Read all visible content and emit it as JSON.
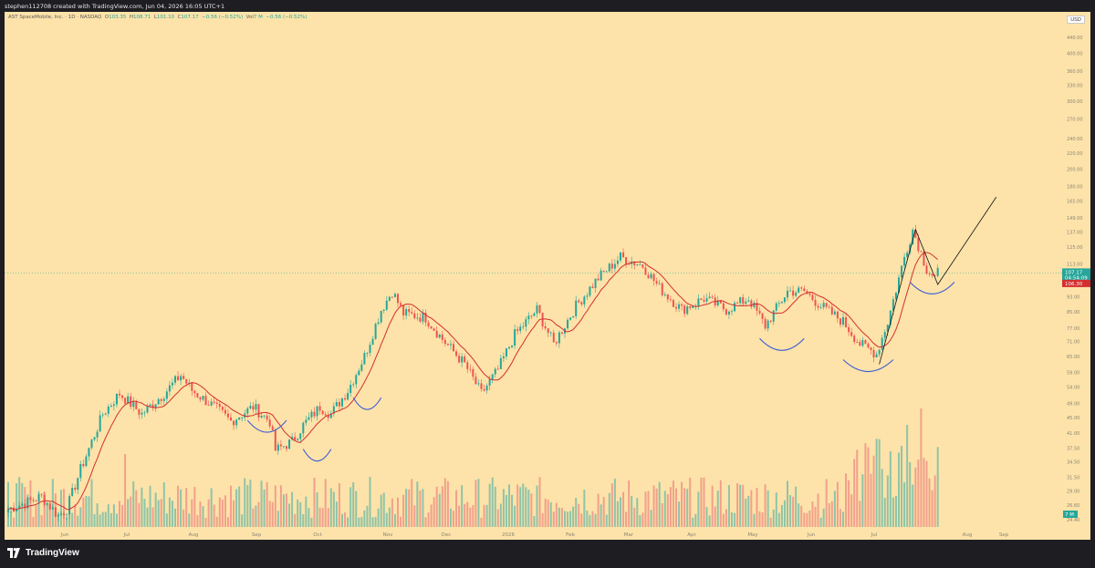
{
  "header": {
    "credit": "stephen112708 created with TradingView.com, Jun 04, 2026 16:05 UTC+1"
  },
  "legend": {
    "symbol": "AST SpaceMobile, Inc. · 1D · NASDAQ",
    "open_label": "O",
    "open": "103.35",
    "high_label": "H",
    "high": "108.71",
    "low_label": "L",
    "low": "101.10",
    "close_label": "C",
    "close": "107.17",
    "change": "−0.56 (−0.52%)",
    "vol_label": "Vol",
    "vol": "7 M",
    "vol_change": "−0.56 (−0.52%)"
  },
  "price_scale": {
    "currency": "USD",
    "labels": [
      "440.00",
      "400.00",
      "360.00",
      "330.00",
      "300.00",
      "270.00",
      "240.00",
      "220.00",
      "200.00",
      "180.00",
      "165.00",
      "149.00",
      "137.00",
      "125.00",
      "113.00",
      "103.00",
      "93.00",
      "85.00",
      "77.00",
      "71.00",
      "65.00",
      "59.00",
      "54.00",
      "49.00",
      "45.00",
      "41.00",
      "37.50",
      "34.50",
      "31.50",
      "29.00",
      "26.60",
      "24.40"
    ],
    "last_price": "107.17",
    "countdown": "04:54:09",
    "ma_value": "106.30",
    "volume_badge": "7 M"
  },
  "colors": {
    "background": "#fde3a9",
    "up": "#26a69a",
    "down": "#ef5350",
    "ma_line": "#d32f2f",
    "arc": "#3b5bd6",
    "trendline": "#111111",
    "vol_up": "#8fc4a8",
    "vol_down": "#f2a08c"
  },
  "chart_data": {
    "type": "candlestick",
    "scale": "log",
    "ylim": [
      24,
      460
    ],
    "x_ticks": [
      "Jun",
      "Jul",
      "Aug",
      "Sep",
      "Oct",
      "Nov",
      "Dec",
      "2026",
      "Feb",
      "Mar",
      "Apr",
      "May",
      "Jun",
      "Jul",
      "Aug",
      "Sep"
    ],
    "anchors": [
      {
        "i": 0,
        "p": 26
      },
      {
        "i": 12,
        "p": 28
      },
      {
        "i": 18,
        "p": 25
      },
      {
        "i": 21,
        "p": 26
      },
      {
        "i": 26,
        "p": 33
      },
      {
        "i": 34,
        "p": 46
      },
      {
        "i": 40,
        "p": 52
      },
      {
        "i": 48,
        "p": 46
      },
      {
        "i": 56,
        "p": 52
      },
      {
        "i": 62,
        "p": 58
      },
      {
        "i": 66,
        "p": 53
      },
      {
        "i": 74,
        "p": 48
      },
      {
        "i": 80,
        "p": 44
      },
      {
        "i": 88,
        "p": 48
      },
      {
        "i": 94,
        "p": 44
      },
      {
        "i": 96,
        "p": 37
      },
      {
        "i": 102,
        "p": 39
      },
      {
        "i": 106,
        "p": 43
      },
      {
        "i": 112,
        "p": 48
      },
      {
        "i": 116,
        "p": 46
      },
      {
        "i": 122,
        "p": 53
      },
      {
        "i": 128,
        "p": 65
      },
      {
        "i": 134,
        "p": 86
      },
      {
        "i": 138,
        "p": 96
      },
      {
        "i": 142,
        "p": 84
      },
      {
        "i": 150,
        "p": 82
      },
      {
        "i": 156,
        "p": 72
      },
      {
        "i": 164,
        "p": 62
      },
      {
        "i": 170,
        "p": 52
      },
      {
        "i": 176,
        "p": 60
      },
      {
        "i": 182,
        "p": 74
      },
      {
        "i": 190,
        "p": 86
      },
      {
        "i": 196,
        "p": 70
      },
      {
        "i": 204,
        "p": 88
      },
      {
        "i": 212,
        "p": 104
      },
      {
        "i": 220,
        "p": 118
      },
      {
        "i": 228,
        "p": 112
      },
      {
        "i": 234,
        "p": 98
      },
      {
        "i": 242,
        "p": 86
      },
      {
        "i": 250,
        "p": 92
      },
      {
        "i": 258,
        "p": 86
      },
      {
        "i": 266,
        "p": 92
      },
      {
        "i": 272,
        "p": 78
      },
      {
        "i": 280,
        "p": 96
      },
      {
        "i": 286,
        "p": 96
      },
      {
        "i": 292,
        "p": 88
      },
      {
        "i": 300,
        "p": 80
      },
      {
        "i": 306,
        "p": 70
      },
      {
        "i": 312,
        "p": 66
      },
      {
        "i": 316,
        "p": 80
      },
      {
        "i": 322,
        "p": 118
      },
      {
        "i": 325,
        "p": 139
      },
      {
        "i": 330,
        "p": 110
      },
      {
        "i": 333,
        "p": 104
      },
      {
        "i": 334,
        "p": 107
      }
    ],
    "series": [
      {
        "name": "MA",
        "type": "line"
      },
      {
        "name": "Vol",
        "type": "bar"
      }
    ],
    "annotations": {
      "trendline": [
        {
          "i": 313,
          "p": 62
        },
        {
          "i": 326,
          "p": 139
        },
        {
          "i": 334,
          "p": 100
        },
        {
          "i": 355,
          "p": 169
        }
      ],
      "arcs": [
        {
          "i_start": 86,
          "i_end": 100,
          "p_low": 41
        },
        {
          "i_start": 106,
          "i_end": 116,
          "p_low": 34.5
        },
        {
          "i_start": 124,
          "i_end": 134,
          "p_low": 47
        },
        {
          "i_start": 270,
          "i_end": 286,
          "p_low": 67
        },
        {
          "i_start": 300,
          "i_end": 318,
          "p_low": 59
        },
        {
          "i_start": 324,
          "i_end": 340,
          "p_low": 94
        }
      ]
    },
    "legend_position": "top-left",
    "grid": false
  }
}
